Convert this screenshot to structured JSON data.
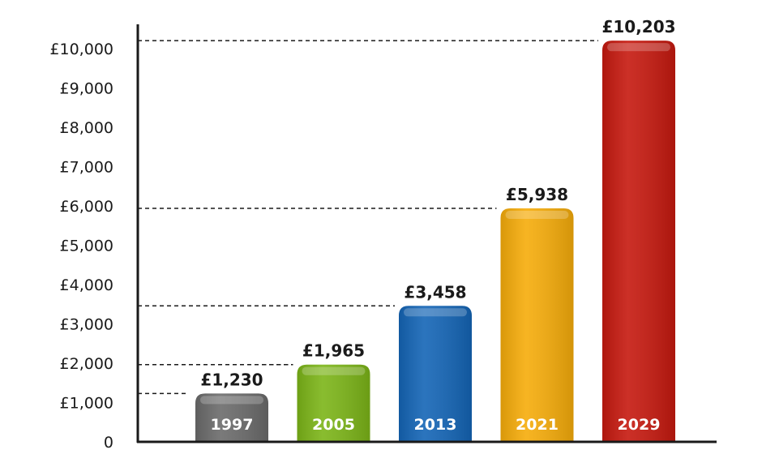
{
  "chart_data": {
    "type": "bar",
    "title": "",
    "xlabel": "",
    "ylabel": "",
    "categories": [
      "1997",
      "2005",
      "2013",
      "2021",
      "2029"
    ],
    "values": [
      1230,
      1965,
      3458,
      5938,
      10203
    ],
    "value_labels": [
      "£1,230",
      "£1,965",
      "£3,458",
      "£5,938",
      "£10,203"
    ],
    "colors": [
      "#6b6b6b",
      "#7cb518",
      "#1465b6",
      "#f6ac0a",
      "#c6190f"
    ],
    "ylim": [
      0,
      10500
    ],
    "yticks": [
      0,
      1000,
      2000,
      3000,
      4000,
      5000,
      6000,
      7000,
      8000,
      9000,
      10000
    ],
    "ytick_labels": [
      "0",
      "£1,000",
      "£2,000",
      "£3,000",
      "£4,000",
      "£5,000",
      "£6,000",
      "£7,000",
      "£8,000",
      "£9,000",
      "£10,000"
    ],
    "grid": false,
    "legend": "none",
    "reference_lines": "dashed line from y-axis to top of each bar"
  }
}
